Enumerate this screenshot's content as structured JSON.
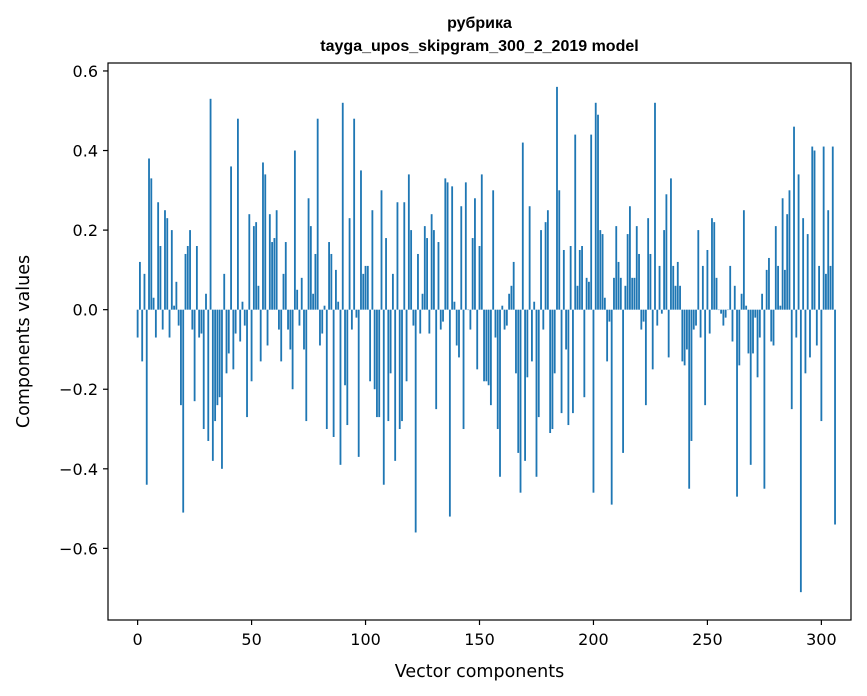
{
  "chart_data": {
    "type": "bar",
    "title": [
      "рубрика",
      "tayga_upos_skipgram_300_2_2019 model"
    ],
    "xlabel": "Vector components",
    "ylabel": "Components values",
    "xlim": [
      -13,
      313
    ],
    "ylim": [
      -0.78,
      0.62
    ],
    "x_ticks": [
      0,
      50,
      100,
      150,
      200,
      250,
      300
    ],
    "y_ticks": [
      -0.6,
      -0.4,
      -0.2,
      0.0,
      0.2,
      0.4,
      0.6
    ],
    "y_tick_labels": [
      "−0.6",
      "−0.4",
      "−0.2",
      "0.0",
      "0.2",
      "0.4",
      "0.6"
    ],
    "grid": false,
    "bar_color": "#1f77b4",
    "series": [
      {
        "x_start": 0,
        "values": [
          -0.07,
          0.12,
          -0.13,
          0.09,
          -0.44,
          0.38,
          0.33,
          0.03,
          -0.07,
          0.27,
          0.16,
          -0.05,
          0.25,
          0.23,
          -0.07,
          0.2,
          0.01,
          0.07,
          -0.04,
          -0.24,
          -0.51,
          0.14,
          0.16,
          0.2,
          -0.05,
          -0.23,
          0.16,
          -0.07,
          -0.06,
          -0.3,
          0.04,
          -0.33,
          0.53,
          -0.38,
          -0.28,
          -0.24,
          -0.22,
          -0.4,
          0.09,
          -0.16,
          -0.11,
          0.36,
          -0.15,
          -0.06,
          0.48,
          -0.08,
          0.02,
          -0.04,
          -0.27,
          0.24,
          -0.18,
          0.21,
          0.22,
          0.06,
          -0.13,
          0.37,
          0.34,
          -0.09,
          0.24,
          0.17,
          0.18,
          0.25,
          -0.05,
          -0.13,
          0.09,
          0.17,
          -0.05,
          -0.1,
          -0.2,
          0.4,
          0.05,
          -0.04,
          0.08,
          -0.1,
          -0.28,
          0.28,
          0.21,
          0.04,
          0.14,
          0.48,
          -0.09,
          -0.06,
          0.01,
          -0.3,
          0.17,
          0.14,
          -0.32,
          0.1,
          0.02,
          -0.39,
          0.52,
          -0.19,
          -0.29,
          0.23,
          -0.05,
          0.48,
          -0.02,
          -0.37,
          0.35,
          0.09,
          0.11,
          0.11,
          -0.18,
          0.25,
          -0.2,
          -0.27,
          -0.27,
          0.3,
          -0.44,
          0.18,
          -0.28,
          -0.16,
          0.09,
          -0.38,
          0.27,
          -0.3,
          -0.28,
          0.27,
          -0.18,
          0.34,
          0.2,
          -0.04,
          -0.56,
          0.14,
          -0.06,
          0.04,
          0.21,
          0.18,
          -0.06,
          0.24,
          0.2,
          -0.25,
          0.17,
          -0.05,
          -0.03,
          0.33,
          0.32,
          -0.52,
          0.31,
          0.02,
          -0.09,
          -0.12,
          0.26,
          -0.3,
          0.32,
          0.0,
          -0.05,
          0.18,
          0.28,
          -0.15,
          0.16,
          0.34,
          -0.18,
          -0.18,
          -0.19,
          -0.24,
          0.3,
          -0.07,
          -0.3,
          -0.42,
          0.01,
          -0.05,
          -0.04,
          0.04,
          0.06,
          0.12,
          -0.16,
          -0.36,
          -0.46,
          0.42,
          -0.38,
          -0.17,
          0.26,
          -0.13,
          0.02,
          -0.42,
          -0.27,
          0.2,
          -0.05,
          0.22,
          0.25,
          -0.31,
          -0.3,
          -0.16,
          0.56,
          0.3,
          -0.26,
          0.15,
          -0.1,
          -0.29,
          0.16,
          -0.26,
          0.44,
          0.06,
          0.15,
          0.16,
          -0.22,
          0.08,
          0.07,
          0.44,
          -0.46,
          0.52,
          0.49,
          0.2,
          0.19,
          0.03,
          -0.13,
          -0.03,
          -0.49,
          0.08,
          0.21,
          0.12,
          0.08,
          -0.36,
          0.06,
          0.19,
          0.26,
          0.08,
          0.08,
          0.21,
          0.14,
          -0.05,
          -0.03,
          -0.24,
          0.23,
          0.14,
          -0.15,
          0.52,
          -0.04,
          0.11,
          -0.01,
          0.2,
          0.29,
          -0.12,
          0.33,
          0.11,
          0.06,
          0.12,
          0.06,
          -0.13,
          -0.14,
          -0.1,
          -0.45,
          -0.33,
          -0.05,
          -0.04,
          0.2,
          -0.07,
          0.11,
          -0.24,
          0.15,
          -0.06,
          0.23,
          0.22,
          0.08,
          0.0,
          -0.01,
          -0.04,
          -0.02,
          0.0,
          0.11,
          -0.08,
          0.06,
          -0.47,
          -0.14,
          0.04,
          0.25,
          0.01,
          -0.11,
          -0.39,
          -0.11,
          -0.02,
          -0.17,
          -0.07,
          0.04,
          -0.45,
          0.1,
          0.13,
          -0.08,
          -0.09,
          0.21,
          0.11,
          0.01,
          0.28,
          0.1,
          0.24,
          0.3,
          -0.25,
          0.46,
          -0.07,
          0.34,
          -0.71,
          0.23,
          -0.16,
          0.19,
          -0.12,
          0.41,
          0.4,
          -0.09,
          0.11,
          -0.28,
          0.41,
          0.09,
          0.25,
          0.11,
          0.41,
          -0.54
        ]
      }
    ]
  }
}
